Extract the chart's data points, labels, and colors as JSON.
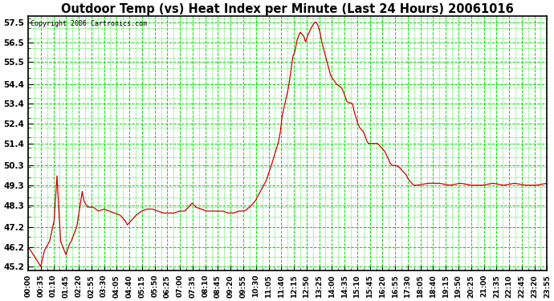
{
  "title": "Outdoor Temp (vs) Heat Index per Minute (Last 24 Hours) 20061016",
  "copyright": "Copyright 2006 Cartronics.com",
  "bg_color": "#ffffff",
  "line_color": "#cc0000",
  "grid_color": "#00dd00",
  "yticks": [
    45.2,
    46.2,
    47.2,
    48.3,
    49.3,
    50.3,
    51.4,
    52.4,
    53.4,
    54.4,
    55.5,
    56.5,
    57.5
  ],
  "ylim": [
    45.0,
    57.8
  ],
  "xtick_labels": [
    "00:00",
    "00:35",
    "01:10",
    "01:45",
    "02:20",
    "02:55",
    "03:30",
    "04:05",
    "04:40",
    "05:15",
    "05:50",
    "06:25",
    "07:00",
    "07:35",
    "08:10",
    "08:45",
    "09:20",
    "09:55",
    "10:30",
    "11:05",
    "11:40",
    "12:15",
    "12:50",
    "13:25",
    "14:00",
    "14:35",
    "15:10",
    "15:45",
    "16:20",
    "16:55",
    "17:30",
    "18:05",
    "18:40",
    "19:15",
    "19:50",
    "20:25",
    "21:00",
    "21:35",
    "22:10",
    "22:45",
    "23:20",
    "23:55"
  ]
}
